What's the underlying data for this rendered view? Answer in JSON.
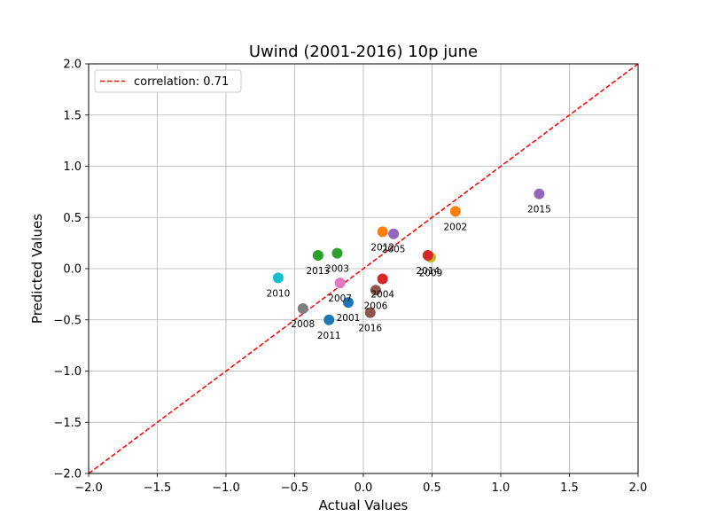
{
  "chart_data": {
    "type": "scatter",
    "title": "Uwind (2001-2016) 10p june",
    "xlabel": "Actual Values",
    "ylabel": "Predicted Values",
    "xlim": [
      -2.0,
      2.0
    ],
    "ylim": [
      -2.0,
      2.0
    ],
    "xticks": [
      "−2.0",
      "−1.5",
      "−1.0",
      "−0.5",
      "0.0",
      "0.5",
      "1.0",
      "1.5",
      "2.0"
    ],
    "yticks": [
      "−2.0",
      "−1.5",
      "−1.0",
      "−0.5",
      "0.0",
      "0.5",
      "1.0",
      "1.5",
      "2.0"
    ],
    "grid": true,
    "legend": {
      "placement": "top-left",
      "entries": [
        "correlation: 0.71"
      ]
    },
    "reference_line": {
      "style": "dashed",
      "color": "#ff0000",
      "x": [
        -2.0,
        2.0
      ],
      "y": [
        -2.0,
        2.0
      ]
    },
    "points": [
      {
        "label": "2001",
        "x": -0.11,
        "y": -0.33,
        "color": "#1f77b4"
      },
      {
        "label": "2002",
        "x": 0.67,
        "y": 0.56,
        "color": "#ff7f0e"
      },
      {
        "label": "2003",
        "x": -0.19,
        "y": 0.15,
        "color": "#2ca02c"
      },
      {
        "label": "2004",
        "x": 0.14,
        "y": -0.1,
        "color": "#d62728"
      },
      {
        "label": "2005",
        "x": 0.22,
        "y": 0.34,
        "color": "#9467bd"
      },
      {
        "label": "2006",
        "x": 0.09,
        "y": -0.21,
        "color": "#8c564b"
      },
      {
        "label": "2007",
        "x": -0.17,
        "y": -0.14,
        "color": "#e377c2"
      },
      {
        "label": "2008",
        "x": -0.44,
        "y": -0.39,
        "color": "#7f7f7f"
      },
      {
        "label": "2009",
        "x": 0.49,
        "y": 0.11,
        "color": "#bcbd22"
      },
      {
        "label": "2010",
        "x": -0.62,
        "y": -0.09,
        "color": "#17becf"
      },
      {
        "label": "2011",
        "x": -0.25,
        "y": -0.5,
        "color": "#1f77b4"
      },
      {
        "label": "2012",
        "x": 0.14,
        "y": 0.36,
        "color": "#ff7f0e"
      },
      {
        "label": "2013",
        "x": -0.33,
        "y": 0.13,
        "color": "#2ca02c"
      },
      {
        "label": "2014",
        "x": 0.47,
        "y": 0.13,
        "color": "#d62728"
      },
      {
        "label": "2015",
        "x": 1.28,
        "y": 0.73,
        "color": "#9467bd"
      },
      {
        "label": "2016",
        "x": 0.05,
        "y": -0.43,
        "color": "#8c564b"
      }
    ]
  }
}
